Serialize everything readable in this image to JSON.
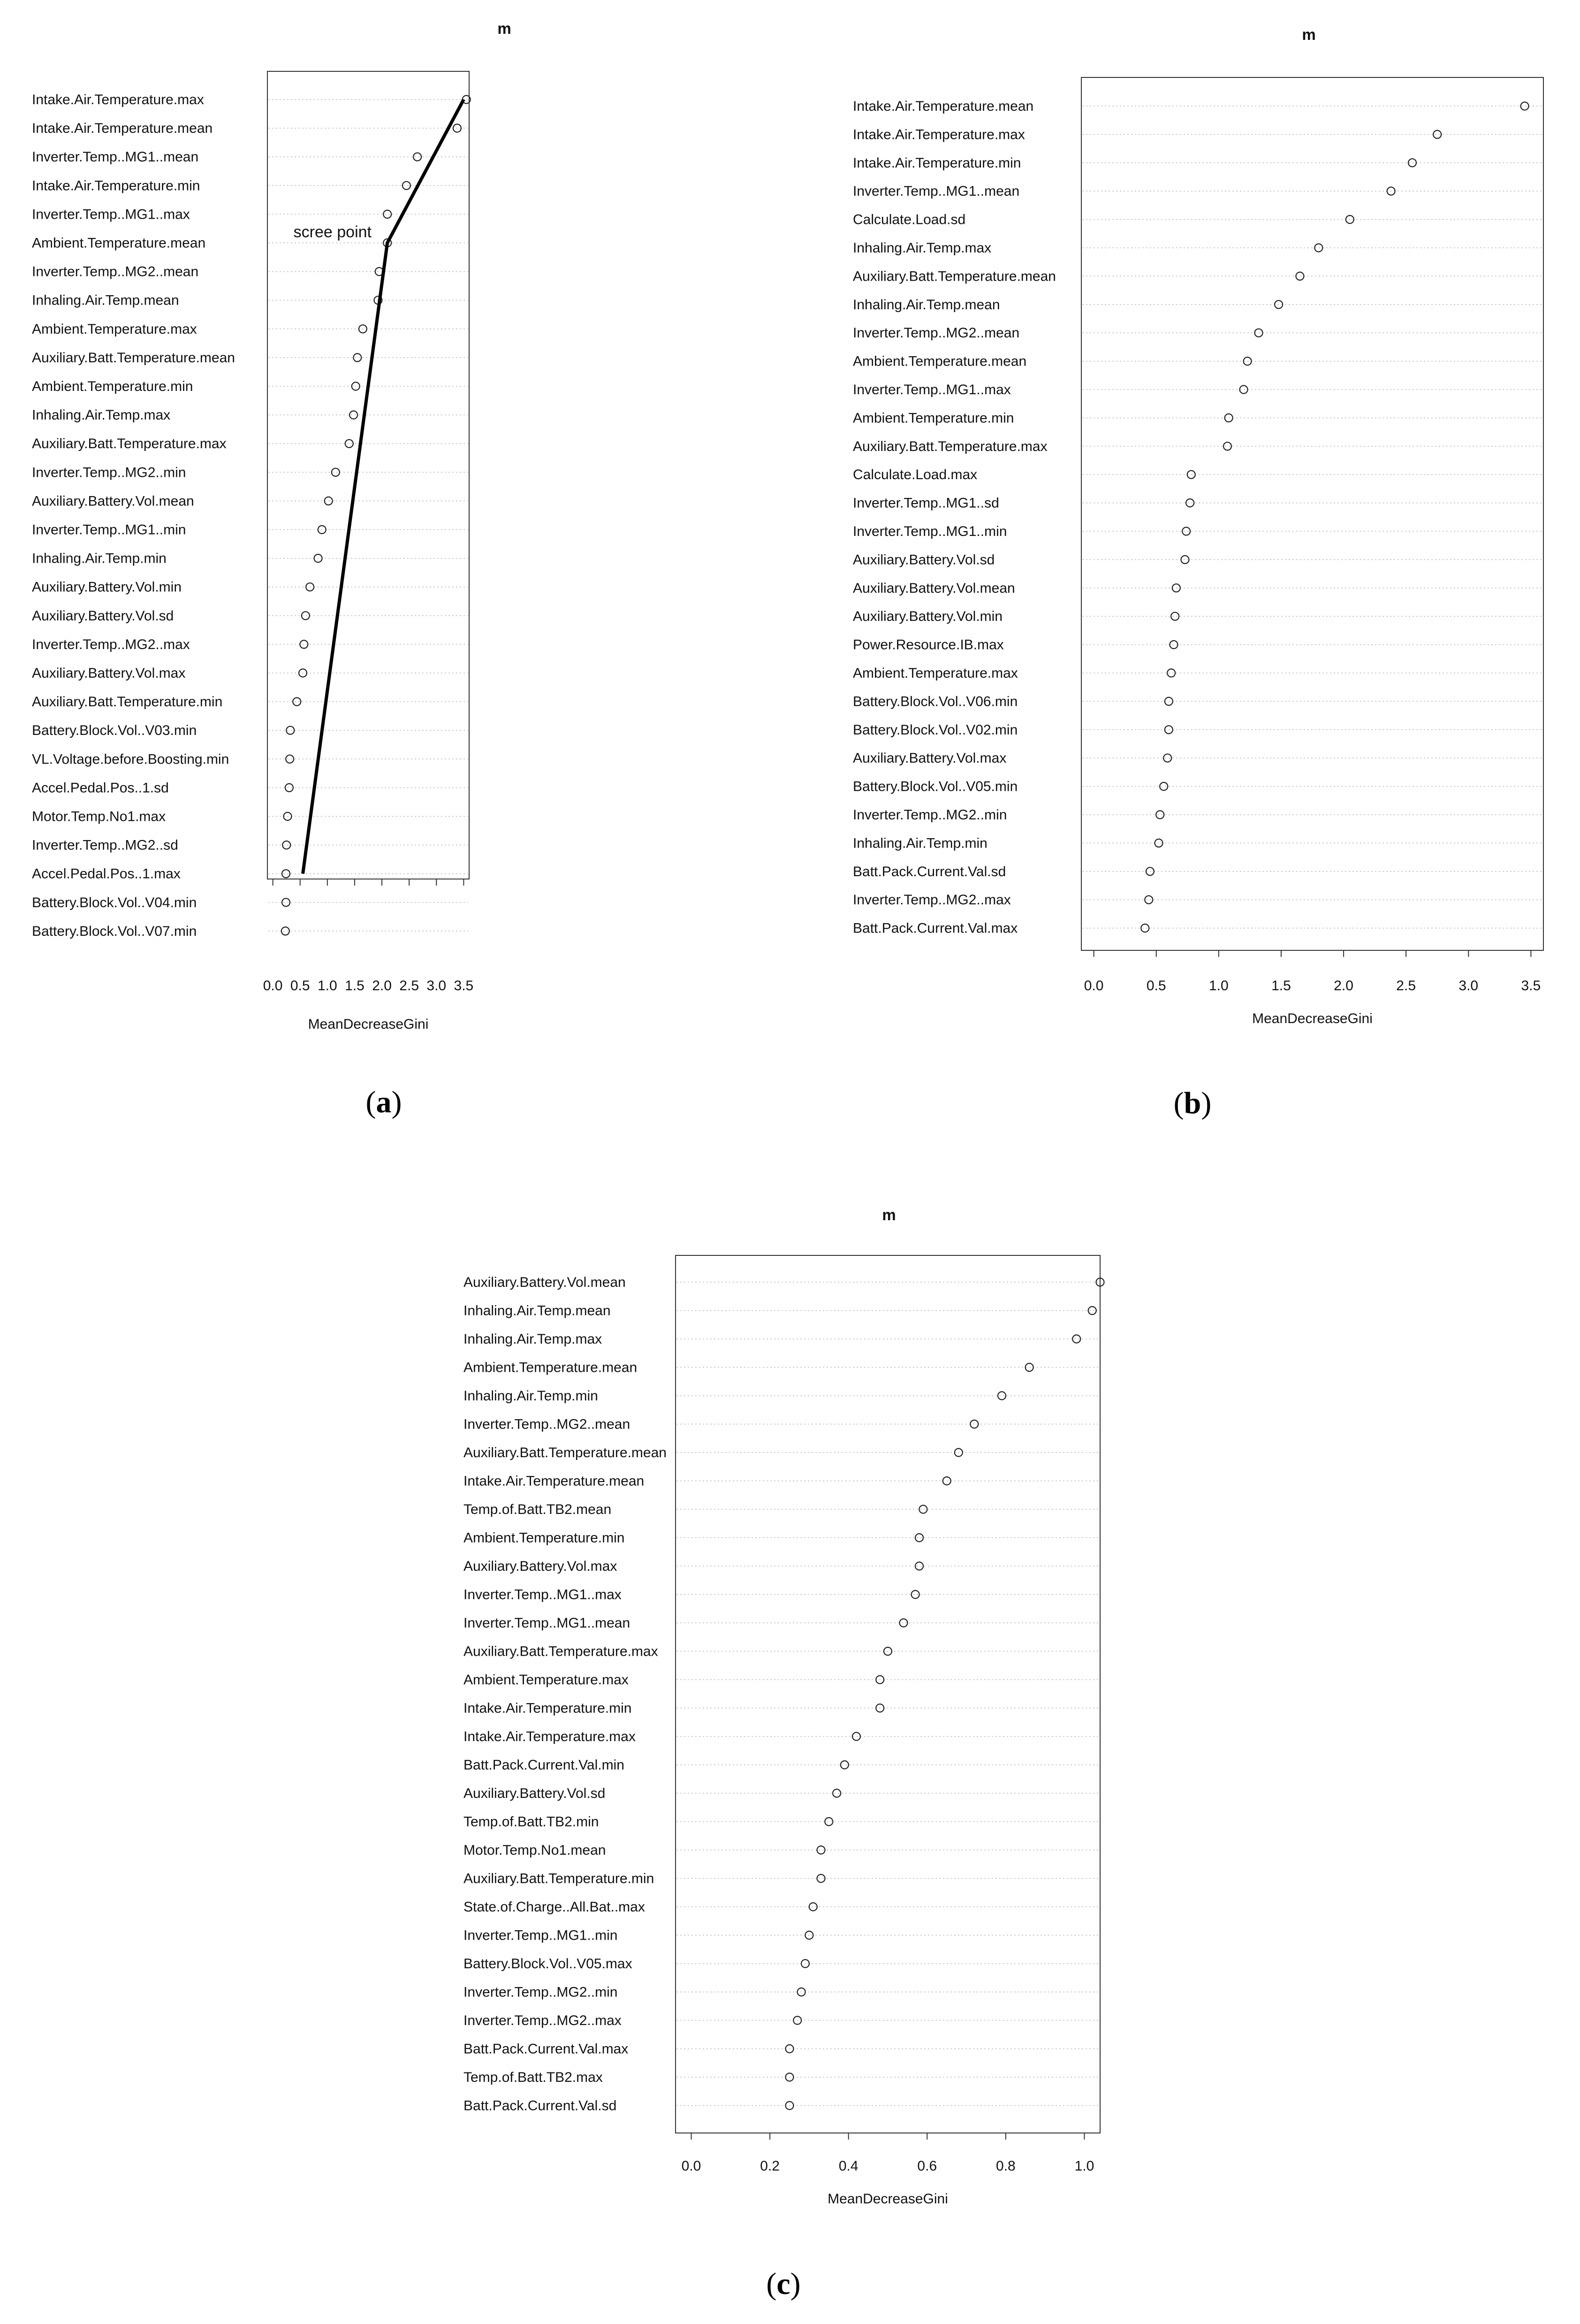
{
  "chart_data": [
    {
      "type": "scatter",
      "panel_caption": "a",
      "title": "m",
      "xlabel": "MeanDecreaseGini",
      "ylabel": "",
      "xlim": [
        -0.1,
        3.6
      ],
      "xticks": [
        "0.0",
        "0.5",
        "1.0",
        "1.5",
        "2.0",
        "2.5",
        "3.0",
        "3.5"
      ],
      "annotation": "scree point",
      "scree_line": [
        [
          0.55,
          28
        ],
        [
          2.1,
          6
        ],
        [
          3.5,
          1
        ]
      ],
      "categories": [
        "Intake.Air.Temperature.max",
        "Intake.Air.Temperature.mean",
        "Inverter.Temp..MG1..mean",
        "Intake.Air.Temperature.min",
        "Inverter.Temp..MG1..max",
        "Ambient.Temperature.mean",
        "Inverter.Temp..MG2..mean",
        "Inhaling.Air.Temp.mean",
        "Ambient.Temperature.max",
        "Auxiliary.Batt.Temperature.mean",
        "Ambient.Temperature.min",
        "Inhaling.Air.Temp.max",
        "Auxiliary.Batt.Temperature.max",
        "Inverter.Temp..MG2..min",
        "Auxiliary.Battery.Vol.mean",
        "Inverter.Temp..MG1..min",
        "Inhaling.Air.Temp.min",
        "Auxiliary.Battery.Vol.min",
        "Auxiliary.Battery.Vol.sd",
        "Inverter.Temp..MG2..max",
        "Auxiliary.Battery.Vol.max",
        "Auxiliary.Batt.Temperature.min",
        "Battery.Block.Vol..V03.min",
        "VL.Voltage.before.Boosting.min",
        "Accel.Pedal.Pos..1.sd",
        "Motor.Temp.No1.max",
        "Inverter.Temp..MG2..sd",
        "Accel.Pedal.Pos..1.max",
        "Battery.Block.Vol..V04.min",
        "Battery.Block.Vol..V07.min"
      ],
      "values": [
        3.55,
        3.38,
        2.65,
        2.45,
        2.1,
        2.1,
        1.95,
        1.93,
        1.65,
        1.55,
        1.52,
        1.48,
        1.4,
        1.15,
        1.02,
        0.9,
        0.83,
        0.68,
        0.6,
        0.57,
        0.55,
        0.44,
        0.32,
        0.31,
        0.3,
        0.27,
        0.25,
        0.24,
        0.24,
        0.23
      ]
    },
    {
      "type": "scatter",
      "panel_caption": "b",
      "title": "m",
      "xlabel": "MeanDecreaseGini",
      "ylabel": "",
      "xlim": [
        -0.1,
        3.6
      ],
      "xticks": [
        "0.0",
        "0.5",
        "1.0",
        "1.5",
        "2.0",
        "2.5",
        "3.0",
        "3.5"
      ],
      "categories": [
        "Intake.Air.Temperature.mean",
        "Intake.Air.Temperature.max",
        "Intake.Air.Temperature.min",
        "Inverter.Temp..MG1..mean",
        "Calculate.Load.sd",
        "Inhaling.Air.Temp.max",
        "Auxiliary.Batt.Temperature.mean",
        "Inhaling.Air.Temp.mean",
        "Inverter.Temp..MG2..mean",
        "Ambient.Temperature.mean",
        "Inverter.Temp..MG1..max",
        "Ambient.Temperature.min",
        "Auxiliary.Batt.Temperature.max",
        "Calculate.Load.max",
        "Inverter.Temp..MG1..sd",
        "Inverter.Temp..MG1..min",
        "Auxiliary.Battery.Vol.sd",
        "Auxiliary.Battery.Vol.mean",
        "Auxiliary.Battery.Vol.min",
        "Power.Resource.IB.max",
        "Ambient.Temperature.max",
        "Battery.Block.Vol..V06.min",
        "Battery.Block.Vol..V02.min",
        "Auxiliary.Battery.Vol.max",
        "Battery.Block.Vol..V05.min",
        "Inverter.Temp..MG2..min",
        "Inhaling.Air.Temp.min",
        "Batt.Pack.Current.Val.sd",
        "Inverter.Temp..MG2..max",
        "Batt.Pack.Current.Val.max"
      ],
      "values": [
        3.45,
        2.75,
        2.55,
        2.38,
        2.05,
        1.8,
        1.65,
        1.48,
        1.32,
        1.23,
        1.2,
        1.08,
        1.07,
        0.78,
        0.77,
        0.74,
        0.73,
        0.66,
        0.65,
        0.64,
        0.62,
        0.6,
        0.6,
        0.59,
        0.56,
        0.53,
        0.52,
        0.45,
        0.44,
        0.41
      ]
    },
    {
      "type": "scatter",
      "panel_caption": "c",
      "title": "m",
      "xlabel": "MeanDecreaseGini",
      "ylabel": "",
      "xlim": [
        -0.04,
        1.04
      ],
      "xticks": [
        "0.0",
        "0.2",
        "0.4",
        "0.6",
        "0.8",
        "1.0"
      ],
      "categories": [
        "Auxiliary.Battery.Vol.mean",
        "Inhaling.Air.Temp.mean",
        "Inhaling.Air.Temp.max",
        "Ambient.Temperature.mean",
        "Inhaling.Air.Temp.min",
        "Inverter.Temp..MG2..mean",
        "Auxiliary.Batt.Temperature.mean",
        "Intake.Air.Temperature.mean",
        "Temp.of.Batt.TB2.mean",
        "Ambient.Temperature.min",
        "Auxiliary.Battery.Vol.max",
        "Inverter.Temp..MG1..max",
        "Inverter.Temp..MG1..mean",
        "Auxiliary.Batt.Temperature.max",
        "Ambient.Temperature.max",
        "Intake.Air.Temperature.min",
        "Intake.Air.Temperature.max",
        "Batt.Pack.Current.Val.min",
        "Auxiliary.Battery.Vol.sd",
        "Temp.of.Batt.TB2.min",
        "Motor.Temp.No1.mean",
        "Auxiliary.Batt.Temperature.min",
        "State.of.Charge..All.Bat..max",
        "Inverter.Temp..MG1..min",
        "Battery.Block.Vol..V05.max",
        "Inverter.Temp..MG2..min",
        "Inverter.Temp..MG2..max",
        "Batt.Pack.Current.Val.max",
        "Temp.of.Batt.TB2.max",
        "Batt.Pack.Current.Val.sd"
      ],
      "values": [
        1.04,
        1.02,
        0.98,
        0.86,
        0.79,
        0.72,
        0.68,
        0.65,
        0.59,
        0.58,
        0.58,
        0.57,
        0.54,
        0.5,
        0.48,
        0.48,
        0.42,
        0.39,
        0.37,
        0.35,
        0.33,
        0.33,
        0.31,
        0.3,
        0.29,
        0.28,
        0.27,
        0.25,
        0.25,
        0.25
      ]
    }
  ]
}
